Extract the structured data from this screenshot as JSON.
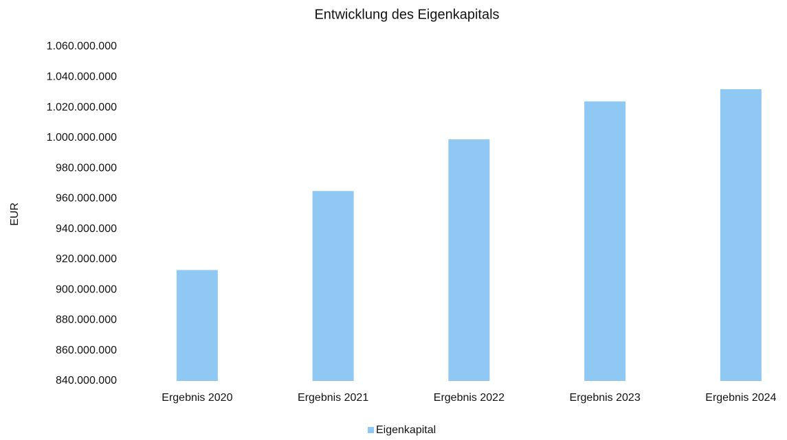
{
  "chart_data": {
    "type": "bar",
    "title": "Entwicklung des Eigenkapitals",
    "y_label": "EUR",
    "categories": [
      "Ergebnis 2020",
      "Ergebnis 2021",
      "Ergebnis 2022",
      "Ergebnis 2023",
      "Ergebnis 2024"
    ],
    "series": [
      {
        "name": "Eigenkapital",
        "color": "#90c8f4",
        "values": [
          913000000,
          965000000,
          999000000,
          1024000000,
          1032000000
        ]
      }
    ],
    "ylim": [
      840000000,
      1060000000
    ],
    "yticks": [
      {
        "value": 840000000,
        "label": "840.000.000"
      },
      {
        "value": 860000000,
        "label": "860.000.000"
      },
      {
        "value": 880000000,
        "label": "880.000.000"
      },
      {
        "value": 900000000,
        "label": "900.000.000"
      },
      {
        "value": 920000000,
        "label": "920.000.000"
      },
      {
        "value": 940000000,
        "label": "940.000.000"
      },
      {
        "value": 960000000,
        "label": "960.000.000"
      },
      {
        "value": 980000000,
        "label": "980.000.000"
      },
      {
        "value": 1000000000,
        "label": "1.000.000.000"
      },
      {
        "value": 1020000000,
        "label": "1.020.000.000"
      },
      {
        "value": 1040000000,
        "label": "1.040.000.000"
      },
      {
        "value": 1060000000,
        "label": "1.060.000.000"
      }
    ],
    "grid": false,
    "legend": "bottom"
  }
}
